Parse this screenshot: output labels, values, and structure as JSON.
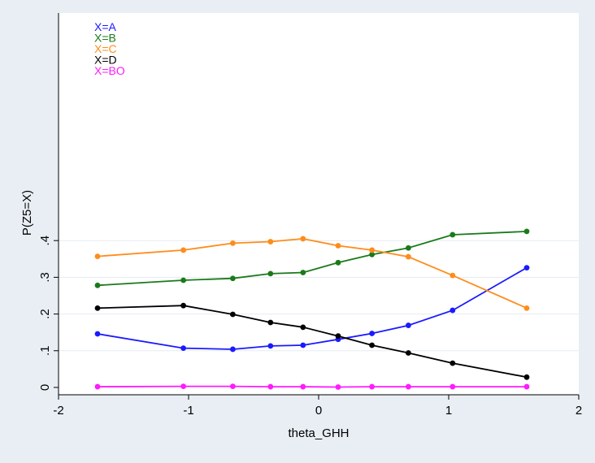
{
  "chart_data": {
    "type": "line",
    "title": "",
    "xlabel": "theta_GHH",
    "ylabel": "P(Z5=X)",
    "xlim": [
      -2,
      2
    ],
    "ylim": [
      -0.02,
      1.02
    ],
    "x_ticks": [
      -2,
      -1,
      0,
      1,
      2
    ],
    "x_tick_labels": [
      "-2",
      "-1",
      "0",
      "1",
      "2"
    ],
    "y_ticks": [
      0,
      0.1,
      0.2,
      0.3,
      0.4
    ],
    "y_tick_labels": [
      "0",
      ".1",
      ".2",
      ".3",
      ".4"
    ],
    "grid": true,
    "legend_position": "top-left",
    "x": [
      -1.7,
      -1.04,
      -0.66,
      -0.37,
      -0.12,
      0.15,
      0.41,
      0.69,
      1.03,
      1.6
    ],
    "series": [
      {
        "name": "X=A",
        "color": "#1a1aff",
        "values": [
          0.146,
          0.107,
          0.104,
          0.113,
          0.115,
          0.131,
          0.147,
          0.169,
          0.21,
          0.326
        ]
      },
      {
        "name": "X=B",
        "color": "#1a7a1a",
        "values": [
          0.278,
          0.292,
          0.297,
          0.31,
          0.313,
          0.34,
          0.362,
          0.38,
          0.416,
          0.425
        ]
      },
      {
        "name": "X=C",
        "color": "#ff8c1a",
        "values": [
          0.357,
          0.374,
          0.393,
          0.397,
          0.405,
          0.386,
          0.374,
          0.356,
          0.305,
          0.216
        ]
      },
      {
        "name": "X=D",
        "color": "#000000",
        "values": [
          0.216,
          0.223,
          0.199,
          0.177,
          0.164,
          0.14,
          0.115,
          0.094,
          0.066,
          0.028
        ]
      },
      {
        "name": "X=BO",
        "color": "#ff1aff",
        "values": [
          0.002,
          0.003,
          0.003,
          0.002,
          0.002,
          0.001,
          0.002,
          0.002,
          0.002,
          0.002
        ]
      }
    ]
  }
}
